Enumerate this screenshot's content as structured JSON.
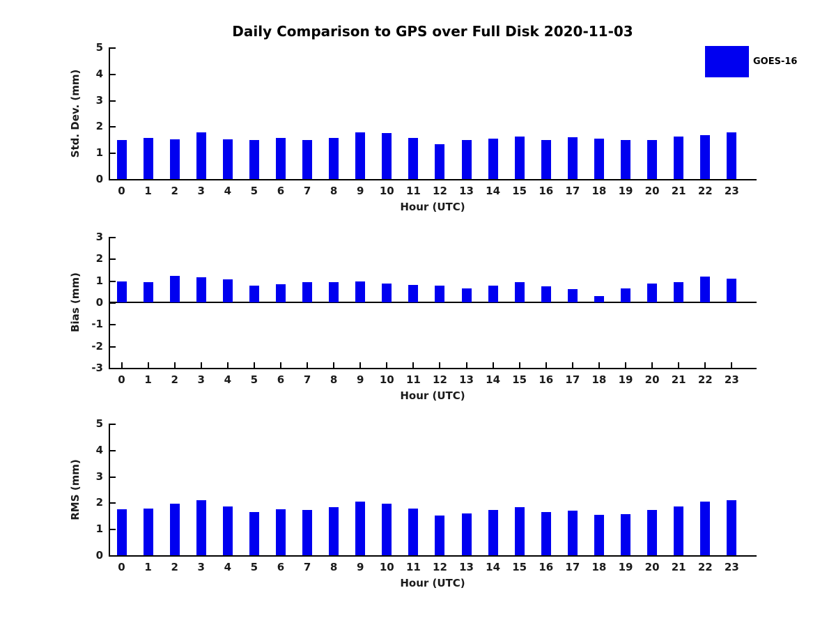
{
  "title": "Daily Comparison to GPS over Full Disk 2020-11-03",
  "legend": {
    "label": "GOES-16",
    "swatch_color": "#0000f0",
    "position": "upper right"
  },
  "colors": {
    "bar": "#0000f0",
    "axis": "#000000",
    "tick_text": "#1a1a1a",
    "background": "#ffffff"
  },
  "chart_data": [
    {
      "type": "bar",
      "name": "std-dev",
      "ylabel": "Std. Dev. (mm)",
      "xlabel": "Hour (UTC)",
      "categories": [
        "0",
        "1",
        "2",
        "3",
        "4",
        "5",
        "6",
        "7",
        "8",
        "9",
        "10",
        "11",
        "12",
        "13",
        "14",
        "15",
        "16",
        "17",
        "18",
        "19",
        "20",
        "21",
        "22",
        "23"
      ],
      "values": [
        1.47,
        1.55,
        1.52,
        1.76,
        1.51,
        1.47,
        1.55,
        1.47,
        1.57,
        1.78,
        1.75,
        1.57,
        1.31,
        1.49,
        1.54,
        1.62,
        1.49,
        1.59,
        1.54,
        1.47,
        1.47,
        1.62,
        1.67,
        1.78
      ],
      "ylim": [
        0,
        5
      ],
      "yticks": [
        0,
        1,
        2,
        3,
        4,
        5
      ],
      "grid": false
    },
    {
      "type": "bar",
      "name": "bias",
      "ylabel": "Bias (mm)",
      "xlabel": "Hour (UTC)",
      "categories": [
        "0",
        "1",
        "2",
        "3",
        "4",
        "5",
        "6",
        "7",
        "8",
        "9",
        "10",
        "11",
        "12",
        "13",
        "14",
        "15",
        "16",
        "17",
        "18",
        "19",
        "20",
        "21",
        "22",
        "23"
      ],
      "values": [
        0.95,
        0.92,
        1.22,
        1.15,
        1.05,
        0.78,
        0.83,
        0.92,
        0.92,
        0.95,
        0.87,
        0.8,
        0.77,
        0.65,
        0.77,
        0.92,
        0.73,
        0.6,
        0.28,
        0.65,
        0.87,
        0.92,
        1.17,
        1.07
      ],
      "ylim": [
        -3,
        3
      ],
      "yticks": [
        -3,
        -2,
        -1,
        0,
        1,
        2,
        3
      ],
      "grid": false
    },
    {
      "type": "bar",
      "name": "rms",
      "ylabel": "RMS (mm)",
      "xlabel": "Hour (UTC)",
      "categories": [
        "0",
        "1",
        "2",
        "3",
        "4",
        "5",
        "6",
        "7",
        "8",
        "9",
        "10",
        "11",
        "12",
        "13",
        "14",
        "15",
        "16",
        "17",
        "18",
        "19",
        "20",
        "21",
        "22",
        "23"
      ],
      "values": [
        1.74,
        1.77,
        1.96,
        2.08,
        1.85,
        1.63,
        1.74,
        1.71,
        1.83,
        2.03,
        1.96,
        1.77,
        1.52,
        1.6,
        1.72,
        1.83,
        1.65,
        1.69,
        1.54,
        1.57,
        1.72,
        1.86,
        2.05,
        2.08
      ],
      "ylim": [
        0,
        5
      ],
      "yticks": [
        0,
        1,
        2,
        3,
        4,
        5
      ],
      "grid": false
    }
  ]
}
